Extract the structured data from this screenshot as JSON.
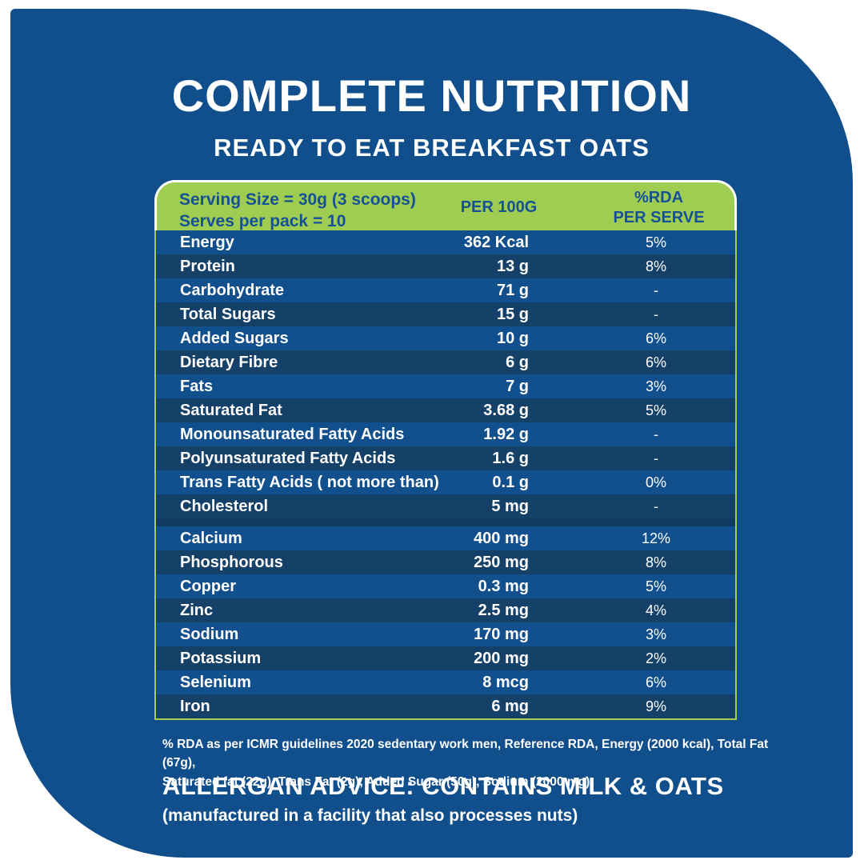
{
  "page": {
    "title": "COMPLETE NUTRITION",
    "subtitle": "READY TO EAT BREAKFAST OATS"
  },
  "table": {
    "header": {
      "serving_line1": "Serving Size = 30g (3 scoops)",
      "serving_line2": "Serves per pack = 10",
      "per100g_label": "PER 100G",
      "rda_line1": "%RDA",
      "rda_line2": "PER SERVE"
    },
    "rows": [
      {
        "label": "Energy",
        "per100g": "362 Kcal",
        "rda": "5%"
      },
      {
        "label": "Protein",
        "per100g": "13 g",
        "rda": "8%"
      },
      {
        "label": "Carbohydrate",
        "per100g": "71 g",
        "rda": "-"
      },
      {
        "label": "Total Sugars",
        "per100g": "15 g",
        "rda": "-"
      },
      {
        "label": "Added Sugars",
        "per100g": "10 g",
        "rda": "6%"
      },
      {
        "label": "Dietary Fibre",
        "per100g": "6 g",
        "rda": "6%"
      },
      {
        "label": "Fats",
        "per100g": "7 g",
        "rda": "3%"
      },
      {
        "label": "Saturated Fat",
        "per100g": "3.68 g",
        "rda": "5%"
      },
      {
        "label": "Monounsaturated Fatty Acids",
        "per100g": "1.92 g",
        "rda": "-"
      },
      {
        "label": "Polyunsaturated Fatty Acids",
        "per100g": "1.6 g",
        "rda": "-"
      },
      {
        "label": "Trans Fatty Acids ( not more than)",
        "per100g": "0.1 g",
        "rda": "0%"
      },
      {
        "label": "Cholesterol",
        "per100g": "5 mg",
        "rda": "-"
      },
      {
        "label": "Calcium",
        "per100g": "400 mg",
        "rda": "12%",
        "section_break_before": true
      },
      {
        "label": "Phosphorous",
        "per100g": "250 mg",
        "rda": "8%"
      },
      {
        "label": "Copper",
        "per100g": "0.3 mg",
        "rda": "5%"
      },
      {
        "label": "Zinc",
        "per100g": "2.5 mg",
        "rda": "4%"
      },
      {
        "label": "Sodium",
        "per100g": "170 mg",
        "rda": "3%"
      },
      {
        "label": "Potassium",
        "per100g": "200 mg",
        "rda": "2%"
      },
      {
        "label": "Selenium",
        "per100g": "8 mcg",
        "rda": "6%"
      },
      {
        "label": "Iron",
        "per100g": "6 mg",
        "rda": "9%"
      }
    ]
  },
  "footer": {
    "rda_note_line1": "% RDA as per ICMR guidelines 2020 sedentary work men, Reference RDA, Energy (2000 kcal), Total Fat (67g),",
    "rda_note_line2": "Saturated fat (22g), Trans Fat (2g), Added Sugar (50g), Sodium (2000 mg)",
    "allergen_advice": "ALLERGAN ADVICE: CONTAINS MILK & OATS",
    "facility_note": "(manufactured in a facility that also processes nuts)"
  },
  "colors": {
    "card_blue": "#114e8c",
    "header_green": "#9ecd52",
    "header_text_blue": "#165195",
    "row_light_blue": "#124f8d",
    "row_dark_blue": "#154068",
    "table_border_green": "#a4cf4c",
    "header_border_white": "#ffffff",
    "text_white": "#ffffff"
  }
}
